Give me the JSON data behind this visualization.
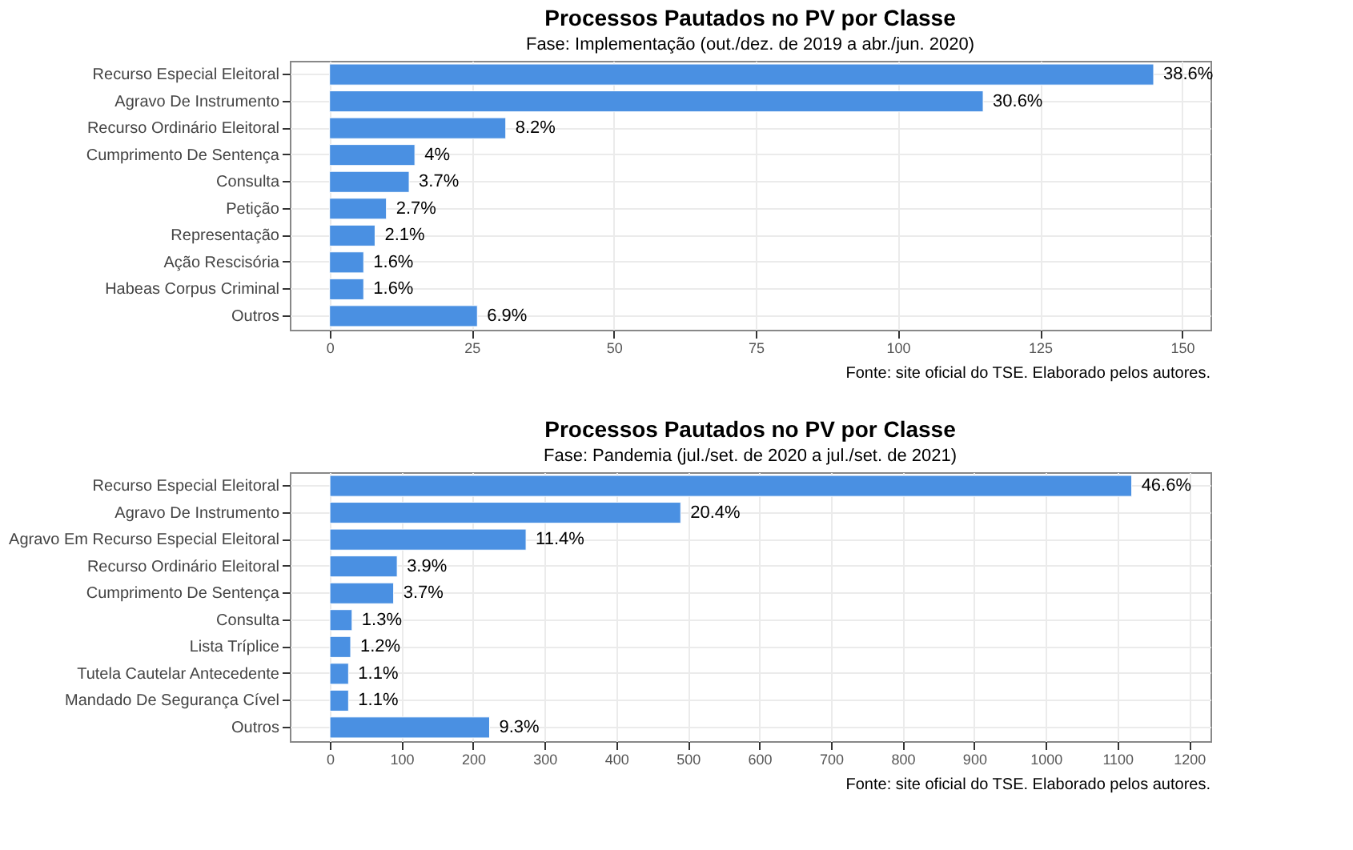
{
  "chart_data": [
    {
      "type": "bar",
      "orientation": "horizontal",
      "title": "Processos Pautados no PV por Classe",
      "subtitle": "Fase: Implementação (out./dez. de 2019 a abr./jun. 2020)",
      "categories": [
        "Recurso Especial Eleitoral",
        "Agravo De Instrumento",
        "Recurso Ordinário Eleitoral",
        "Cumprimento De Sentença",
        "Consulta",
        "Petição",
        "Representação",
        "Ação Rescisória",
        "Habeas Corpus Criminal",
        "Outros"
      ],
      "values": [
        145,
        115,
        31,
        15,
        14,
        10,
        8,
        6,
        6,
        26
      ],
      "color": "#4a90e2",
      "xlim": [
        -7,
        155
      ],
      "xticks": [
        0,
        25,
        50,
        75,
        100,
        125,
        150
      ],
      "grid": true,
      "annotations": [
        {
          "text": "38.6%",
          "x": 145,
          "y": "Recurso Especial Eleitoral"
        },
        {
          "text": "30.6%",
          "x": 115,
          "y": "Agravo De Instrumento"
        },
        {
          "text": "8.2%",
          "x": 31,
          "y": "Recurso Ordinário Eleitoral"
        },
        {
          "text": "4%",
          "x": 15,
          "y": "Cumprimento De Sentença"
        },
        {
          "text": "3.7%",
          "x": 14,
          "y": "Consulta"
        },
        {
          "text": "2.7%",
          "x": 10,
          "y": "Petição"
        },
        {
          "text": "2.1%",
          "x": 8,
          "y": "Representação"
        },
        {
          "text": "1.6%",
          "x": 6,
          "y": "Ação Rescisória"
        },
        {
          "text": "1.6%",
          "x": 6,
          "y": "Habeas Corpus Criminal"
        },
        {
          "text": "6.9%",
          "x": 26,
          "y": "Outros"
        },
        "Fonte: site oficial do TSE. Elaborado pelos autores."
      ]
    },
    {
      "type": "bar",
      "orientation": "horizontal",
      "title": "Processos Pautados no PV por Classe",
      "subtitle": "Fase: Pandemia (jul./set. de 2020 a jul./set. de 2021)",
      "categories": [
        "Recurso Especial Eleitoral",
        "Agravo De Instrumento",
        "Agravo Em Recurso Especial Eleitoral",
        "Recurso Ordinário Eleitoral",
        "Cumprimento De Sentença",
        "Consulta",
        "Lista Tríplice",
        "Tutela Cautelar Antecedente",
        "Mandado De Segurança Cível",
        "Outros"
      ],
      "values": [
        1120,
        490,
        274,
        94,
        89,
        31,
        29,
        26,
        26,
        223
      ],
      "color": "#4a90e2",
      "xlim": [
        -56,
        1230
      ],
      "xticks": [
        0,
        100,
        200,
        300,
        400,
        500,
        600,
        700,
        800,
        900,
        1000,
        1100,
        1200
      ],
      "grid": true,
      "annotations": [
        {
          "text": "46.6%",
          "x": 1120,
          "y": "Recurso Especial Eleitoral"
        },
        {
          "text": "20.4%",
          "x": 490,
          "y": "Agravo De Instrumento"
        },
        {
          "text": "11.4%",
          "x": 274,
          "y": "Agravo Em Recurso Especial Eleitoral"
        },
        {
          "text": "3.9%",
          "x": 94,
          "y": "Recurso Ordinário Eleitoral"
        },
        {
          "text": "3.7%",
          "x": 89,
          "y": "Cumprimento De Sentença"
        },
        {
          "text": "1.3%",
          "x": 31,
          "y": "Consulta"
        },
        {
          "text": "1.2%",
          "x": 29,
          "y": "Lista Tríplice"
        },
        {
          "text": "1.1%",
          "x": 26,
          "y": "Tutela Cautelar Antecedente"
        },
        {
          "text": "1.1%",
          "x": 26,
          "y": "Mandado De Segurança Cível"
        },
        {
          "text": "9.3%",
          "x": 223,
          "y": "Outros"
        },
        "Fonte: site oficial do TSE. Elaborado pelos autores."
      ]
    }
  ]
}
